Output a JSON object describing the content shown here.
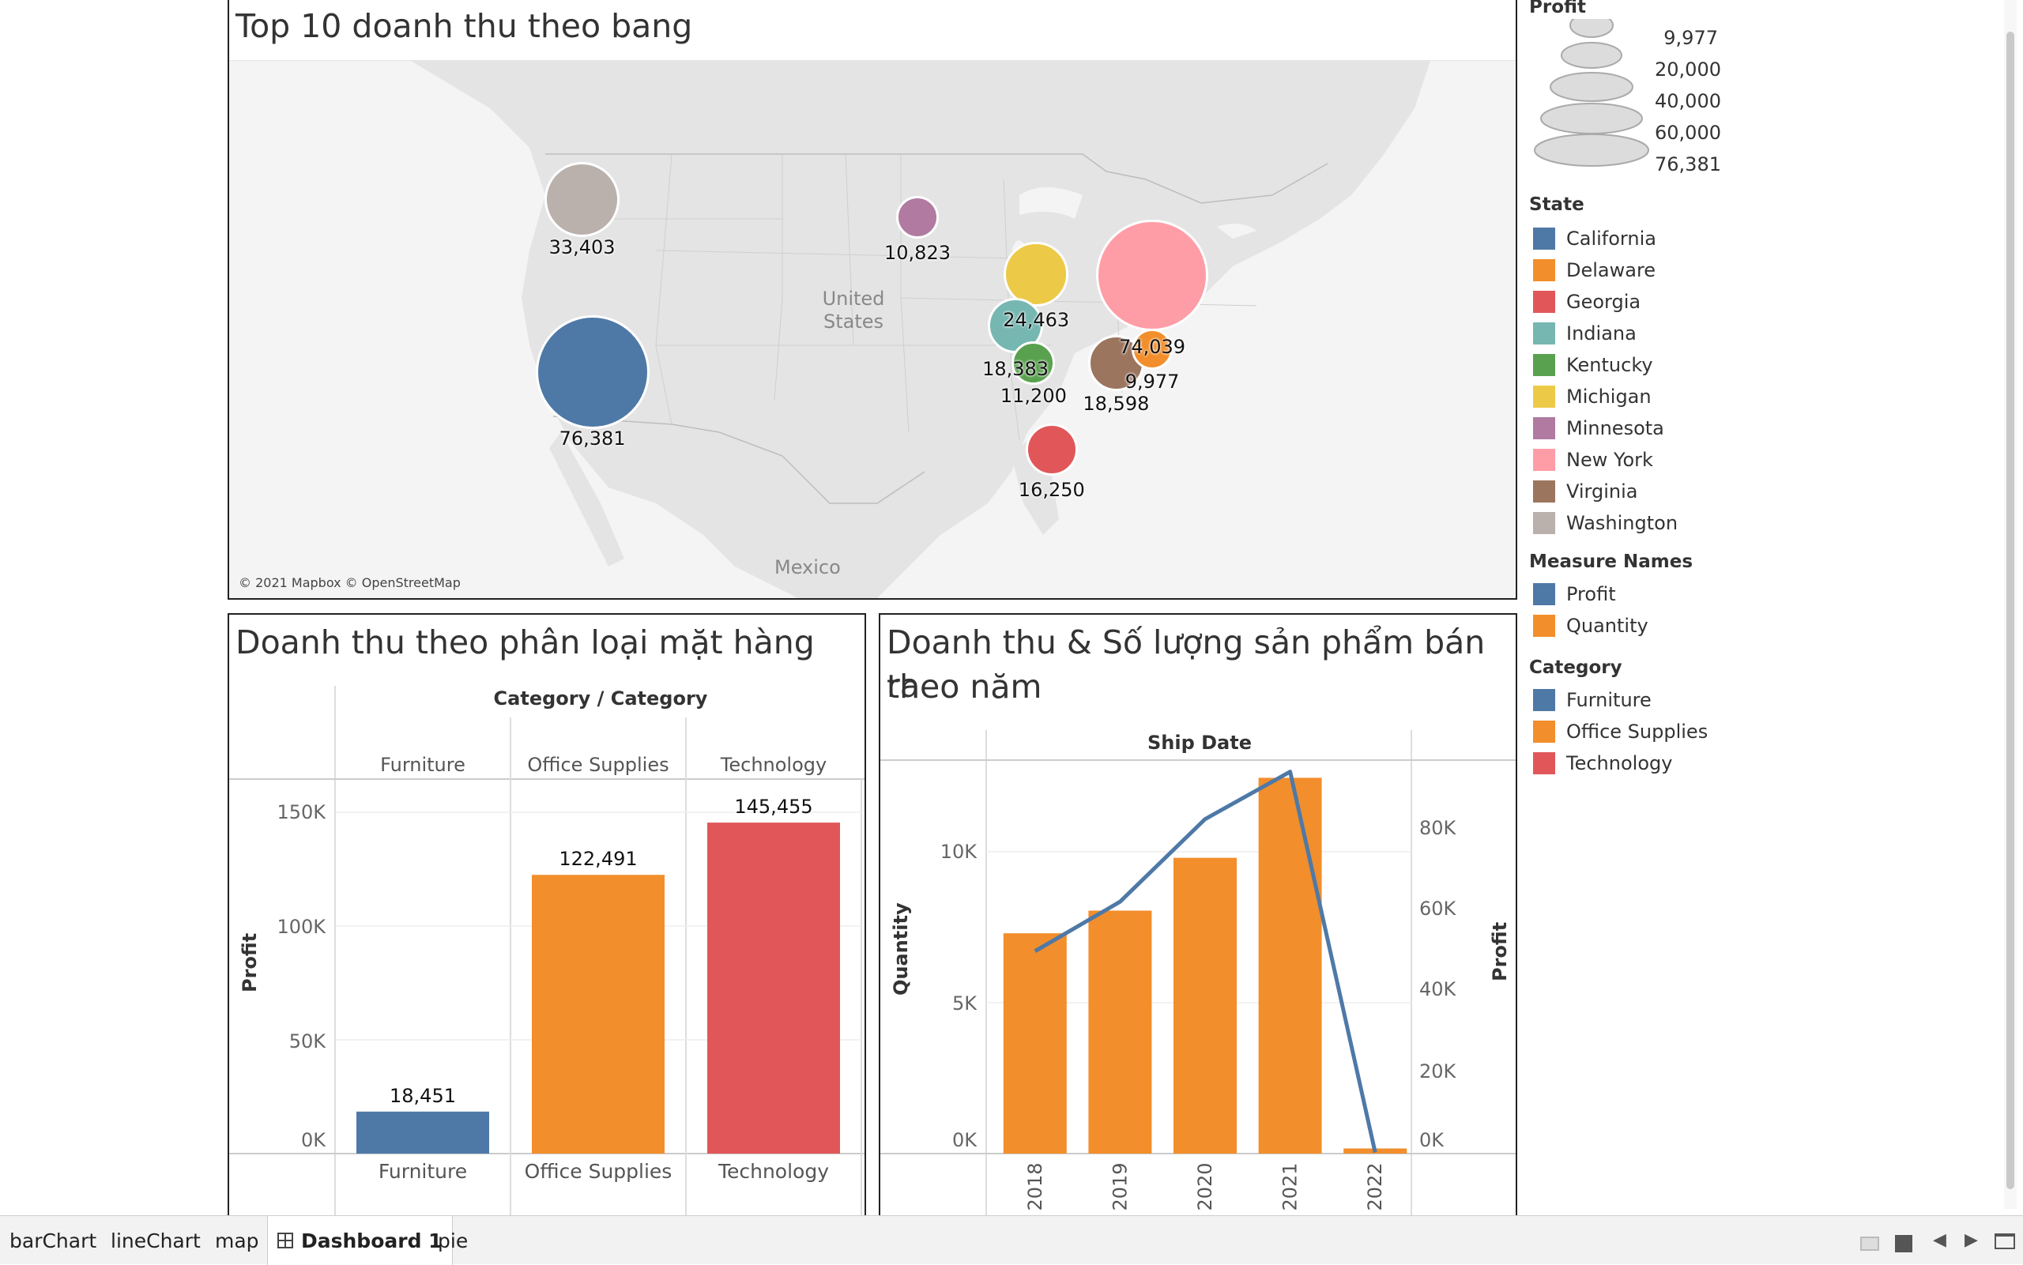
{
  "map_panel": {
    "title": "Top 10 doanh thu theo bang",
    "place_labels": {
      "us": "United\nStates",
      "mexico": "Mexico"
    },
    "attribution": "© 2021 Mapbox © OpenStreetMap",
    "bubbles": [
      {
        "state": "Washington",
        "profit": 33403,
        "label": "33,403",
        "color": "#bab0ac"
      },
      {
        "state": "Minnesota",
        "profit": 10823,
        "label": "10,823",
        "color": "#b07aa1"
      },
      {
        "state": "Michigan",
        "profit": 24463,
        "label": "24,463",
        "color": "#edc948"
      },
      {
        "state": "New York",
        "profit": 74039,
        "label": "74,039",
        "color": "#ff9da7"
      },
      {
        "state": "Indiana",
        "profit": 18383,
        "label": "18,383",
        "color": "#76b7b2"
      },
      {
        "state": "Delaware",
        "profit": 9977,
        "label": "9,977",
        "color": "#f28e2b"
      },
      {
        "state": "Kentucky",
        "profit": 11200,
        "label": "11,200",
        "color": "#59a14f"
      },
      {
        "state": "Virginia",
        "profit": 18598,
        "label": "18,598",
        "color": "#9c755f"
      },
      {
        "state": "California",
        "profit": 76381,
        "label": "76,381",
        "color": "#4e79a7"
      },
      {
        "state": "Georgia",
        "profit": 16250,
        "label": "16,250",
        "color": "#e15759"
      }
    ]
  },
  "bar_panel": {
    "title": "Doanh thu theo phân loại mặt hàng",
    "header": "Category / Category",
    "columns": [
      "Furniture",
      "Office Supplies",
      "Technology"
    ],
    "y_label": "Profit",
    "y_ticks": [
      "150K",
      "100K",
      "50K",
      "0K"
    ]
  },
  "combo_panel": {
    "title_line1": "Doanh thu & Số lượng sản phẩm bán ra",
    "title_line2": "theo năm",
    "header": "Ship Date",
    "y_left_label": "Quantity",
    "y_right_label": "Profit",
    "y_left_ticks": [
      "10K",
      "5K",
      "0K"
    ],
    "y_right_ticks": [
      "80K",
      "60K",
      "40K",
      "20K",
      "0K"
    ]
  },
  "chart_data": [
    {
      "type": "bar",
      "title": "Doanh thu theo phân loại mặt hàng",
      "categories": [
        "Furniture",
        "Office Supplies",
        "Technology"
      ],
      "values": [
        18451,
        122491,
        145455
      ],
      "value_labels": [
        "18,451",
        "122,491",
        "145,455"
      ],
      "colors": [
        "#4e79a7",
        "#f28e2b",
        "#e15759"
      ],
      "ylabel": "Profit",
      "ylim": [
        0,
        160000
      ]
    },
    {
      "type": "bar",
      "title": "Doanh thu & Số lượng sản phẩm bán ra theo năm",
      "categories": [
        "2018",
        "2019",
        "2020",
        "2021",
        "2022"
      ],
      "series": [
        {
          "name": "Quantity",
          "type": "bar",
          "axis": "left",
          "color": "#f28e2b",
          "values": [
            7300,
            8050,
            9800,
            12450,
            170
          ]
        },
        {
          "name": "Profit",
          "type": "line",
          "axis": "right",
          "color": "#4e79a7",
          "values": [
            49500,
            61600,
            81800,
            93400,
            300
          ]
        }
      ],
      "ylim_left": [
        0,
        12500
      ],
      "ylim_right": [
        0,
        94000
      ],
      "xlabel": "Ship Date"
    }
  ],
  "legends": {
    "profit": {
      "title": "Profit",
      "values": [
        "9,977",
        "20,000",
        "40,000",
        "60,000",
        "76,381"
      ]
    },
    "state": {
      "title": "State",
      "items": [
        {
          "label": "California",
          "color": "#4e79a7"
        },
        {
          "label": "Delaware",
          "color": "#f28e2b"
        },
        {
          "label": "Georgia",
          "color": "#e15759"
        },
        {
          "label": "Indiana",
          "color": "#76b7b2"
        },
        {
          "label": "Kentucky",
          "color": "#59a14f"
        },
        {
          "label": "Michigan",
          "color": "#edc948"
        },
        {
          "label": "Minnesota",
          "color": "#b07aa1"
        },
        {
          "label": "New York",
          "color": "#ff9da7"
        },
        {
          "label": "Virginia",
          "color": "#9c755f"
        },
        {
          "label": "Washington",
          "color": "#bab0ac"
        }
      ]
    },
    "measure": {
      "title": "Measure Names",
      "items": [
        {
          "label": "Profit",
          "color": "#4e79a7"
        },
        {
          "label": "Quantity",
          "color": "#f28e2b"
        }
      ]
    },
    "category": {
      "title": "Category",
      "items": [
        {
          "label": "Furniture",
          "color": "#4e79a7"
        },
        {
          "label": "Office Supplies",
          "color": "#f28e2b"
        },
        {
          "label": "Technology",
          "color": "#e15759"
        }
      ]
    }
  },
  "tabs": [
    {
      "label": "barChart",
      "active": false
    },
    {
      "label": "lineChart",
      "active": false
    },
    {
      "label": "map",
      "active": false
    },
    {
      "label": "Dashboard 1",
      "active": true
    },
    {
      "label": "pie",
      "active": false
    }
  ]
}
